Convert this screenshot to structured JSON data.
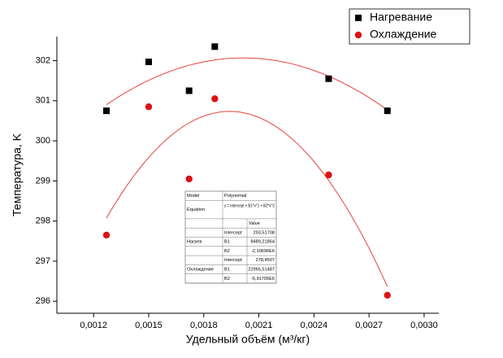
{
  "chart_data": {
    "type": "scatter",
    "xlabel": "Удельный объём (м³/кг)",
    "ylabel": "Температура, K",
    "xlim": [
      0.001,
      0.00308
    ],
    "ylim": [
      295.7,
      302.6
    ],
    "xticks": [
      {
        "value": 0.0012,
        "label": "0,0012"
      },
      {
        "value": 0.0015,
        "label": "0,0015"
      },
      {
        "value": 0.0018,
        "label": "0,0018"
      },
      {
        "value": 0.0021,
        "label": "0,0021"
      },
      {
        "value": 0.0024,
        "label": "0,0024"
      },
      {
        "value": 0.0027,
        "label": "0,0027"
      },
      {
        "value": 0.003,
        "label": "0,0030"
      }
    ],
    "yticks": [
      296,
      297,
      298,
      299,
      300,
      301,
      302
    ],
    "legend": "top-right",
    "fit_color": "#e8423c",
    "series": [
      {
        "name": "Нагревание",
        "color": "#000000",
        "marker": "square",
        "x": [
          0.00127,
          0.0015,
          0.00172,
          0.00186,
          0.00248,
          0.0028
        ],
        "values": [
          300.75,
          301.97,
          301.25,
          302.35,
          301.55,
          300.75
        ]
      },
      {
        "name": "Охлаждение",
        "color": "#dd1111",
        "marker": "circle",
        "x": [
          0.00127,
          0.0015,
          0.00172,
          0.00186,
          0.00248,
          0.0028
        ],
        "values": [
          297.65,
          300.85,
          299.05,
          301.05,
          299.15,
          296.15
        ]
      }
    ]
  },
  "table": {
    "model_label": "Model",
    "model": "Polynomial",
    "equation_label": "Equation",
    "equation": "y = Intercept + B1*x^1 + B2*x^2",
    "value_header": "Value",
    "groups": [
      {
        "name": "Нагрев",
        "params": [
          {
            "name": "Intercept",
            "value": {
              "value": 293.51708,
              "label": "293,51708"
            }
          },
          {
            "name": "B1",
            "value": {
              "value": 8489.21864,
              "label": "8489,21864"
            }
          },
          {
            "name": "B2",
            "value": {
              "value": -2106960,
              "label": "-2,10696E6"
            }
          }
        ]
      },
      {
        "name": "Охлаждение",
        "params": [
          {
            "name": "Intercept",
            "value": {
              "value": 278.4507,
              "label": "278,4507"
            }
          },
          {
            "name": "B1",
            "value": {
              "value": 22965.51487,
              "label": "22965,51487"
            }
          },
          {
            "name": "B2",
            "value": {
              "value": -5917050,
              "label": "-5,91705E6"
            }
          }
        ]
      }
    ]
  }
}
